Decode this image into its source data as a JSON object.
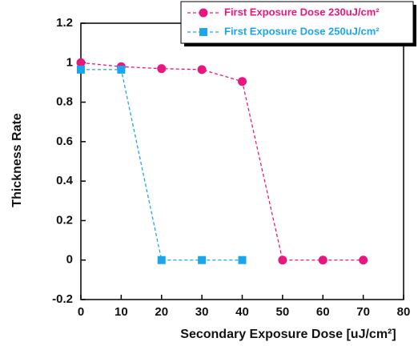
{
  "chart_data": {
    "type": "line",
    "xlabel": "Secondary Exposure Dose [uJ/cm²]",
    "ylabel": "Thickness Rate",
    "xlim": [
      0,
      80
    ],
    "xticks": [
      0,
      10,
      20,
      30,
      40,
      50,
      60,
      70,
      80
    ],
    "ylim": [
      -0.2,
      1.2
    ],
    "yticks": [
      -0.2,
      0,
      0.2,
      0.4,
      0.6,
      0.8,
      1,
      1.2
    ],
    "legend": "top-right",
    "series": [
      {
        "name": "First Exposure Dose 230uJ/cm²",
        "color": "#e8177f",
        "marker": "circle",
        "x": [
          0,
          10,
          20,
          30,
          40,
          50,
          60,
          70
        ],
        "values": [
          1.0,
          0.98,
          0.97,
          0.965,
          0.905,
          0,
          0,
          0
        ]
      },
      {
        "name": "First Exposure Dose 250uJ/cm²",
        "color": "#1ba6ea",
        "marker": "square",
        "x": [
          0,
          10,
          20,
          30,
          40
        ],
        "values": [
          0.965,
          0.965,
          0,
          0,
          0
        ]
      }
    ]
  }
}
